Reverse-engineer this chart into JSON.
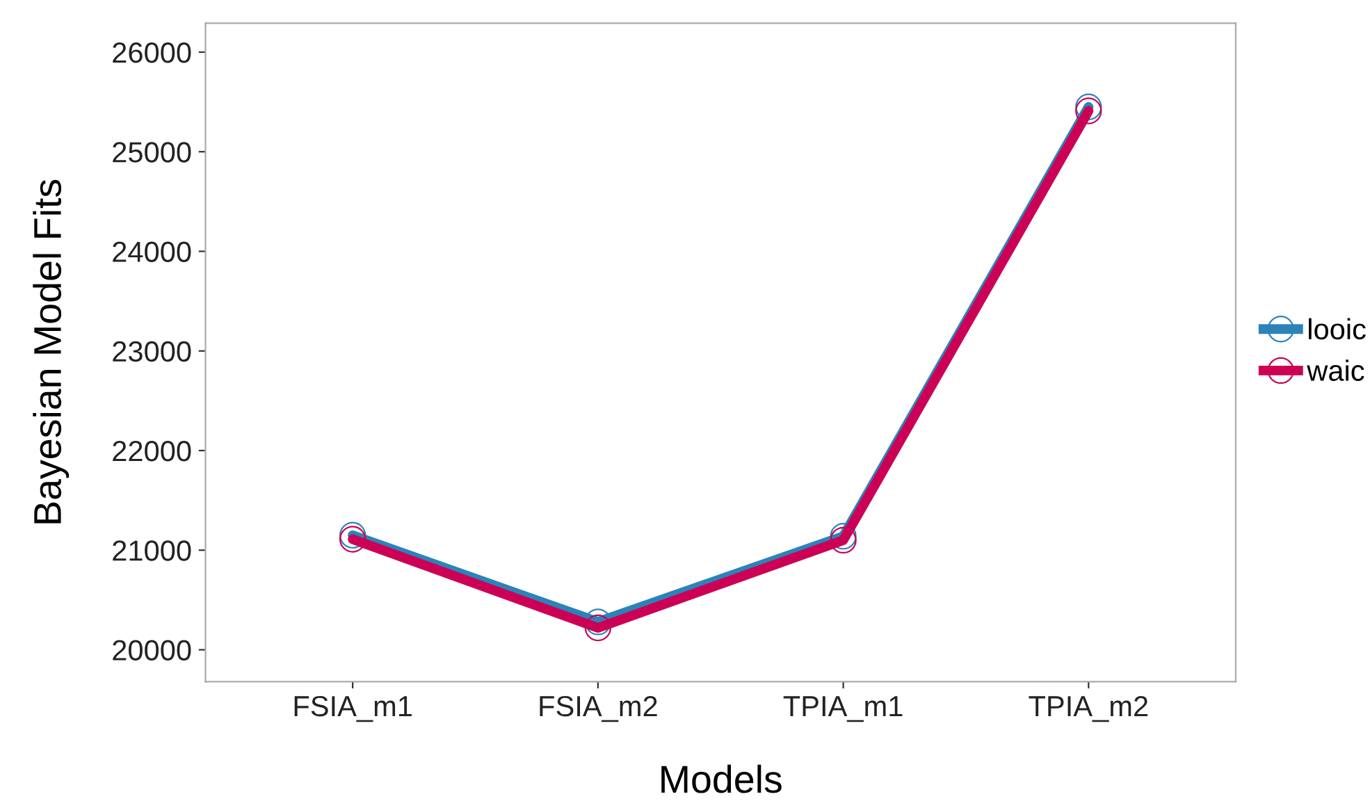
{
  "chart_data": {
    "type": "line",
    "xlabel": "Models",
    "ylabel": "Bayesian Model Fits",
    "categories": [
      "FSIA_m1",
      "FSIA_m2",
      "TPIA_m1",
      "TPIA_m2"
    ],
    "series": [
      {
        "name": "looic",
        "color": "#2b83ba",
        "values": [
          21150,
          20280,
          21140,
          25450
        ]
      },
      {
        "name": "waic",
        "color": "#cc0055",
        "values": [
          21110,
          20220,
          21100,
          25410
        ]
      }
    ],
    "ylim": [
      19680,
      26290
    ],
    "yticks": [
      20000,
      21000,
      22000,
      23000,
      24000,
      25000,
      26000
    ],
    "grid": false,
    "legend": "right",
    "marker": "circle",
    "line_style": "solid"
  }
}
